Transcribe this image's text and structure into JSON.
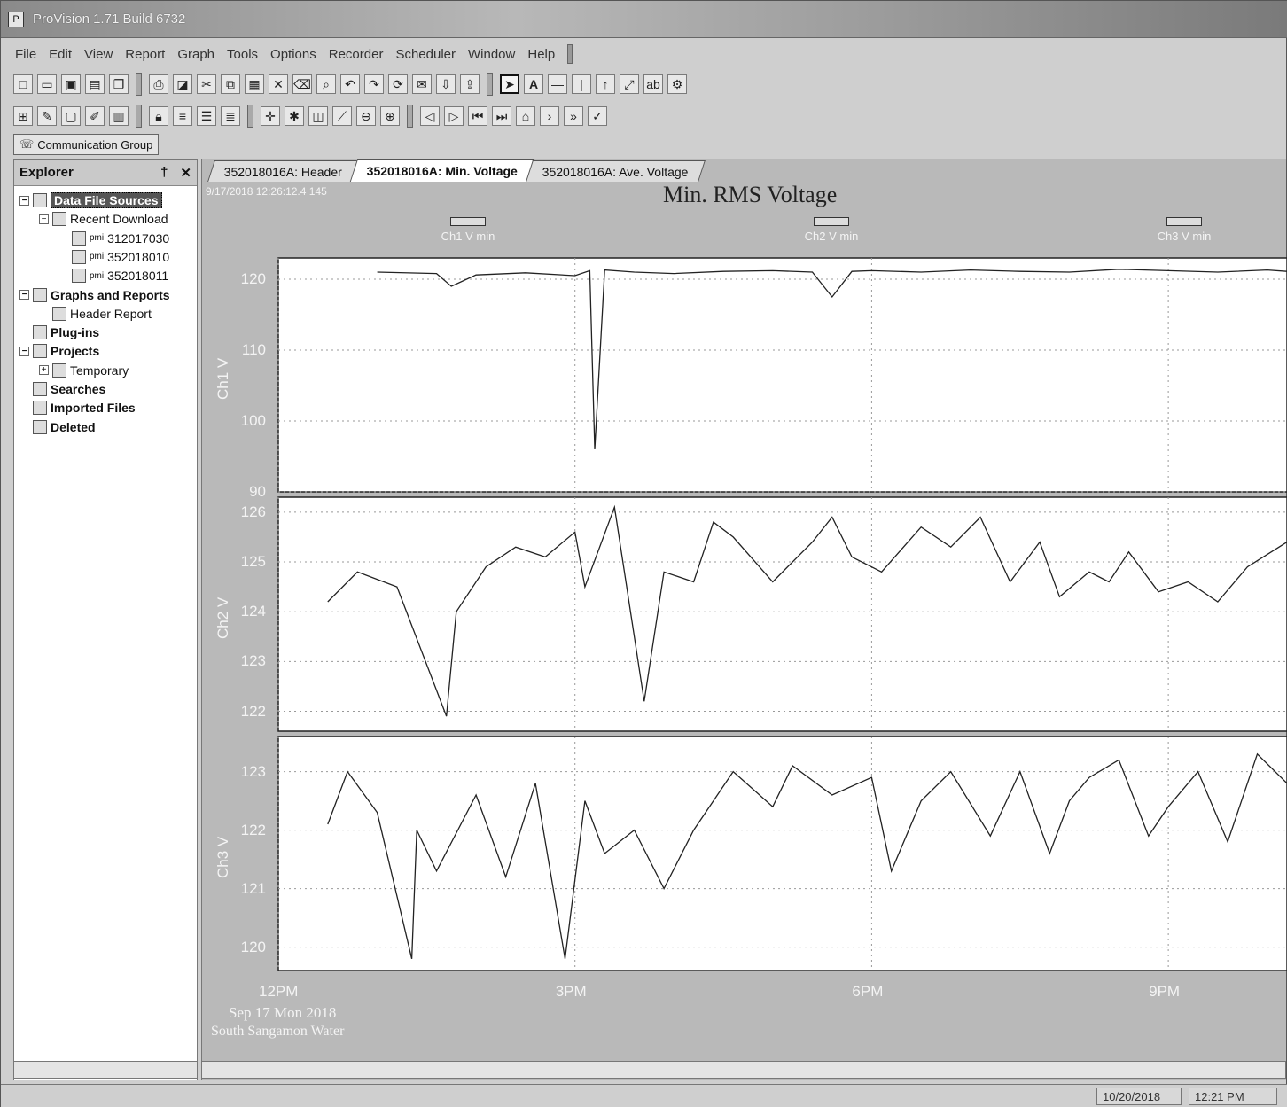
{
  "window": {
    "title": "ProVision 1.71 Build 6732"
  },
  "menu": [
    "File",
    "Edit",
    "View",
    "Report",
    "Graph",
    "Tools",
    "Options",
    "Recorder",
    "Scheduler",
    "Window",
    "Help"
  ],
  "communication_group": "Communication Group",
  "explorer": {
    "title": "Explorer",
    "pin": "†",
    "close": "✕",
    "tree": [
      {
        "label": "Data File Sources",
        "level": 0,
        "bold": true,
        "selected": true,
        "exp": "−",
        "icon": "db"
      },
      {
        "label": "Recent Download",
        "level": 1,
        "bold": false,
        "exp": "−",
        "icon": "dl"
      },
      {
        "label": "312017030",
        "level": 2,
        "bold": false,
        "exp": "",
        "icon": "file",
        "prefix": "pmi"
      },
      {
        "label": "352018010",
        "level": 2,
        "bold": false,
        "exp": "",
        "icon": "file",
        "prefix": "pmi"
      },
      {
        "label": "352018011",
        "level": 2,
        "bold": false,
        "exp": "",
        "icon": "file",
        "prefix": "pmi"
      },
      {
        "label": "Graphs and Reports",
        "level": 0,
        "bold": true,
        "exp": "−",
        "icon": "gr"
      },
      {
        "label": "Header Report",
        "level": 1,
        "bold": false,
        "exp": "",
        "icon": "rep"
      },
      {
        "label": "Plug-ins",
        "level": 0,
        "bold": true,
        "exp": "",
        "icon": "pl"
      },
      {
        "label": "Projects",
        "level": 0,
        "bold": true,
        "exp": "−",
        "icon": "pr"
      },
      {
        "label": "Temporary",
        "level": 1,
        "bold": false,
        "exp": "+",
        "icon": "fo"
      },
      {
        "label": "Searches",
        "level": 0,
        "bold": true,
        "exp": "",
        "icon": "se"
      },
      {
        "label": "Imported Files",
        "level": 0,
        "bold": true,
        "exp": "",
        "icon": "im"
      },
      {
        "label": "Deleted",
        "level": 0,
        "bold": true,
        "exp": "",
        "icon": "de"
      }
    ]
  },
  "tabs": [
    {
      "label": "352018016A: Header",
      "active": false
    },
    {
      "label": "352018016A: Min. Voltage",
      "active": true
    },
    {
      "label": "352018016A: Ave. Voltage",
      "active": false
    }
  ],
  "chart": {
    "stamp": "9/17/2018 12:26:12.4 145",
    "footer_line1": "Sep 17 Mon 2018",
    "footer_line2": "South Sangamon Water"
  },
  "chart_data": {
    "type": "line",
    "title": "Min. RMS Voltage",
    "x_ticks": [
      "12PM",
      "3PM",
      "6PM",
      "9PM"
    ],
    "x_range_hours": [
      12,
      22.2
    ],
    "legend": [
      "Ch1 V min",
      "Ch2 V min",
      "Ch3 V min"
    ],
    "panels": [
      {
        "name": "Ch1 V min",
        "ylabel": "Ch1 V",
        "ylim": [
          90,
          123
        ],
        "yticks": [
          120,
          110,
          100,
          90
        ],
        "x": [
          13,
          13.6,
          13.75,
          14,
          14.5,
          15.0,
          15.15,
          15.2,
          15.3,
          15.6,
          16,
          16.5,
          17,
          17.4,
          17.6,
          17.8,
          18,
          18.5,
          19,
          19.5,
          20,
          20.5,
          21,
          21.5,
          22,
          22.2
        ],
        "y": [
          121.0,
          120.8,
          119.0,
          120.6,
          120.9,
          120.5,
          121.2,
          96.0,
          121.3,
          121.0,
          120.8,
          121.1,
          121.2,
          121.0,
          117.5,
          121.1,
          121.2,
          121.0,
          121.3,
          121.1,
          121.0,
          121.4,
          121.2,
          121.0,
          121.3,
          121.1
        ]
      },
      {
        "name": "Ch2 V min",
        "ylabel": "Ch2 V",
        "ylim": [
          121.6,
          126.3
        ],
        "yticks": [
          126,
          125,
          124,
          123,
          122
        ],
        "x": [
          12.5,
          12.8,
          13.2,
          13.7,
          13.8,
          14.1,
          14.4,
          14.7,
          15.0,
          15.1,
          15.4,
          15.7,
          15.9,
          16.2,
          16.4,
          16.6,
          17.0,
          17.4,
          17.6,
          17.8,
          18.1,
          18.5,
          18.8,
          19.1,
          19.4,
          19.7,
          19.9,
          20.2,
          20.4,
          20.6,
          20.9,
          21.2,
          21.5,
          21.8,
          22.2
        ],
        "y": [
          124.2,
          124.8,
          124.5,
          121.9,
          124.0,
          124.9,
          125.3,
          125.1,
          125.6,
          124.5,
          126.1,
          122.2,
          124.8,
          124.6,
          125.8,
          125.5,
          124.6,
          125.4,
          125.9,
          125.1,
          124.8,
          125.7,
          125.3,
          125.9,
          124.6,
          125.4,
          124.3,
          124.8,
          124.6,
          125.2,
          124.4,
          124.6,
          124.2,
          124.9,
          125.4
        ]
      },
      {
        "name": "Ch3 V min",
        "ylabel": "Ch3 V",
        "ylim": [
          119.6,
          123.6
        ],
        "yticks": [
          123,
          122,
          121,
          120
        ],
        "x": [
          12.5,
          12.7,
          13.0,
          13.35,
          13.4,
          13.6,
          14.0,
          14.3,
          14.6,
          14.9,
          15.1,
          15.3,
          15.6,
          15.9,
          16.2,
          16.6,
          17.0,
          17.2,
          17.6,
          18.0,
          18.2,
          18.5,
          18.8,
          19.2,
          19.5,
          19.8,
          20.0,
          20.2,
          20.5,
          20.8,
          21.0,
          21.3,
          21.6,
          21.9,
          22.2
        ],
        "y": [
          122.1,
          123.0,
          122.3,
          119.8,
          122.0,
          121.3,
          122.6,
          121.2,
          122.8,
          119.8,
          122.5,
          121.6,
          122.0,
          121.0,
          122.0,
          123.0,
          122.4,
          123.1,
          122.6,
          122.9,
          121.3,
          122.5,
          123.0,
          121.9,
          123.0,
          121.6,
          122.5,
          122.9,
          123.2,
          121.9,
          122.4,
          123.0,
          121.8,
          123.3,
          122.8
        ]
      }
    ]
  },
  "status": {
    "date": "10/20/2018",
    "time": "12:21 PM"
  }
}
